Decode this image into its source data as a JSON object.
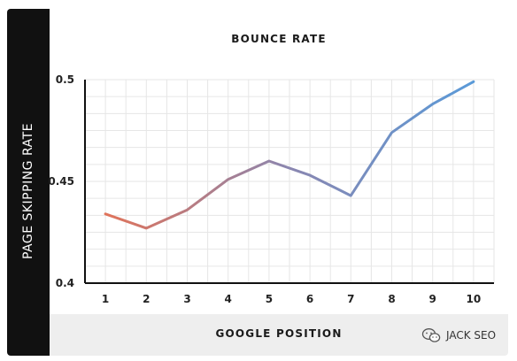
{
  "chart_data": {
    "type": "line",
    "title": "BOUNCE RATE",
    "xlabel": "GOOGLE POSITION",
    "ylabel": "PAGE SKIPPING RATE",
    "x": [
      1,
      2,
      3,
      4,
      5,
      6,
      7,
      8,
      9,
      10
    ],
    "series": [
      {
        "values": [
          0.434,
          0.427,
          0.436,
          0.451,
          0.46,
          0.453,
          0.443,
          0.474,
          0.488,
          0.499
        ]
      }
    ],
    "xlim": [
      0.5,
      10.5
    ],
    "ylim": [
      0.4,
      0.5
    ],
    "yticks": [
      "0.4",
      "0.45",
      "0.5"
    ],
    "xticks": [
      "1",
      "2",
      "3",
      "4",
      "5",
      "6",
      "7",
      "8",
      "9",
      "10"
    ],
    "grid": true,
    "line_gradient": [
      "#e0735a",
      "#8a86b0",
      "#5a9ad8"
    ]
  },
  "watermark": {
    "text": "JACK SEO",
    "icon": "wechat-icon"
  }
}
